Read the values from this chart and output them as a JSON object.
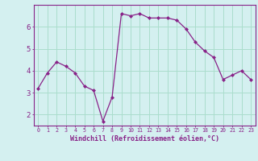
{
  "x": [
    0,
    1,
    2,
    3,
    4,
    5,
    6,
    7,
    8,
    9,
    10,
    11,
    12,
    13,
    14,
    15,
    16,
    17,
    18,
    19,
    20,
    21,
    22,
    23
  ],
  "y": [
    3.2,
    3.9,
    4.4,
    4.2,
    3.9,
    3.3,
    3.1,
    1.7,
    2.8,
    6.6,
    6.5,
    6.6,
    6.4,
    6.4,
    6.4,
    6.3,
    5.9,
    5.3,
    4.9,
    4.6,
    3.6,
    3.8,
    4.0,
    3.6
  ],
  "xlabel": "Windchill (Refroidissement éolien,°C)",
  "ylim": [
    1.5,
    7.0
  ],
  "xlim": [
    -0.5,
    23.5
  ],
  "yticks": [
    2,
    3,
    4,
    5,
    6
  ],
  "xticks": [
    0,
    1,
    2,
    3,
    4,
    5,
    6,
    7,
    8,
    9,
    10,
    11,
    12,
    13,
    14,
    15,
    16,
    17,
    18,
    19,
    20,
    21,
    22,
    23
  ],
  "line_color": "#882288",
  "marker": "D",
  "marker_size": 2,
  "background_color": "#d4f0f0",
  "grid_color": "#aaddcc",
  "axis_color": "#882288",
  "tick_color": "#882288",
  "label_color": "#882288",
  "font_family": "monospace",
  "xlabel_fontsize": 6.0,
  "xtick_fontsize": 4.8,
  "ytick_fontsize": 6.5
}
